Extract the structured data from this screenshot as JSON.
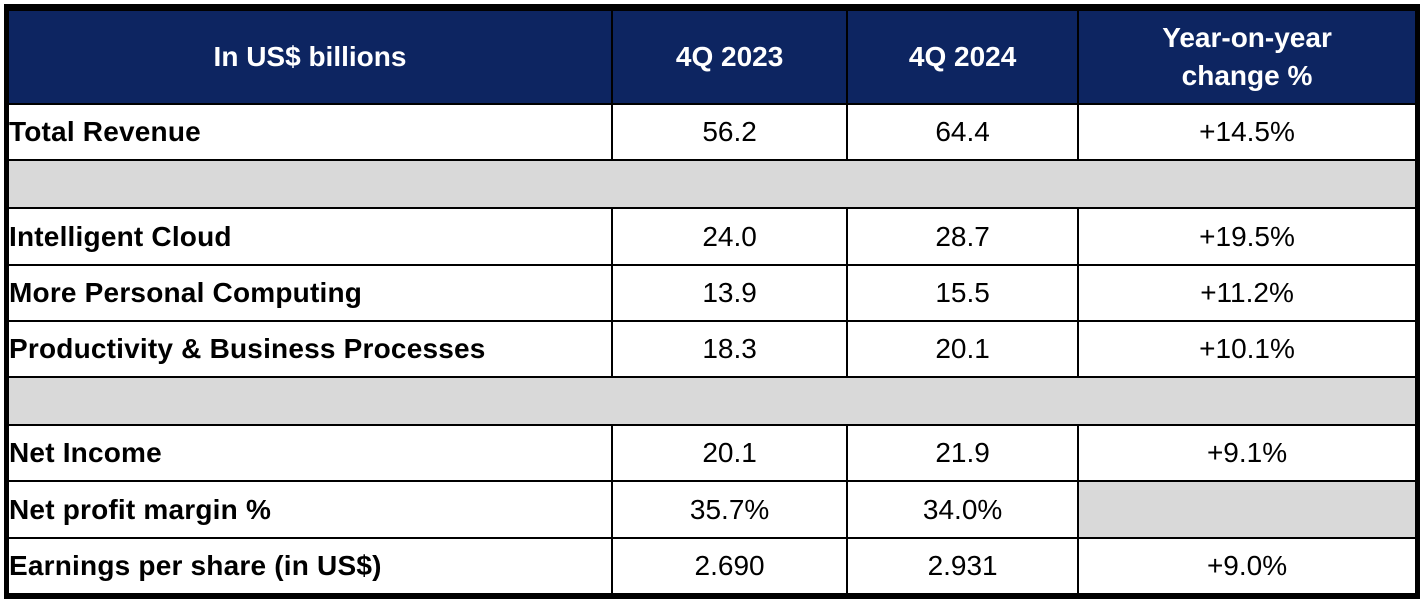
{
  "colors": {
    "header_bg": "#0D2561",
    "header_text": "#FFFFFF",
    "spacer_bg": "#D9D9D9",
    "border": "#000000",
    "row_bg": "#FFFFFF",
    "text": "#000000"
  },
  "table": {
    "columns": {
      "label": "In US$ billions",
      "q2023": "4Q 2023",
      "q2024": "4Q 2024",
      "yoy": "Year-on-year\nchange %"
    },
    "rows": [
      {
        "type": "data",
        "label": "Total Revenue",
        "q2023": "56.2",
        "q2024": "64.4",
        "yoy": "+14.5%"
      },
      {
        "type": "spacer"
      },
      {
        "type": "data",
        "label": "Intelligent Cloud",
        "q2023": "24.0",
        "q2024": "28.7",
        "yoy": "+19.5%"
      },
      {
        "type": "data",
        "label": "More Personal Computing",
        "q2023": "13.9",
        "q2024": "15.5",
        "yoy": "+11.2%"
      },
      {
        "type": "data",
        "label": "Productivity & Business Processes",
        "q2023": "18.3",
        "q2024": "20.1",
        "yoy": "+10.1%"
      },
      {
        "type": "spacer"
      },
      {
        "type": "data",
        "label": "Net Income",
        "q2023": "20.1",
        "q2024": "21.9",
        "yoy": "+9.1%"
      },
      {
        "type": "data",
        "label": "Net profit margin %",
        "q2023": "35.7%",
        "q2024": "34.0%",
        "yoy": ""
      },
      {
        "type": "data",
        "label": "Earnings per share (in US$)",
        "q2023": "2.690",
        "q2024": "2.931",
        "yoy": "+9.0%"
      }
    ]
  },
  "chart_data": {
    "type": "table",
    "title": "Quarterly results, in US$ billions (4Q 2023 vs 4Q 2024)",
    "columns": [
      "In US$ billions",
      "4Q 2023",
      "4Q 2024",
      "Year-on-year change %"
    ],
    "rows": [
      {
        "label": "Total Revenue",
        "q4_2023": 56.2,
        "q4_2024": 64.4,
        "yoy_change": "+14.5%"
      },
      {
        "label": "Intelligent Cloud",
        "q4_2023": 24.0,
        "q4_2024": 28.7,
        "yoy_change": "+19.5%"
      },
      {
        "label": "More Personal Computing",
        "q4_2023": 13.9,
        "q4_2024": 15.5,
        "yoy_change": "+11.2%"
      },
      {
        "label": "Productivity & Business Processes",
        "q4_2023": 18.3,
        "q4_2024": 20.1,
        "yoy_change": "+10.1%"
      },
      {
        "label": "Net Income",
        "q4_2023": 20.1,
        "q4_2024": 21.9,
        "yoy_change": "+9.1%"
      },
      {
        "label": "Net profit margin %",
        "q4_2023": "35.7%",
        "q4_2024": "34.0%",
        "yoy_change": null
      },
      {
        "label": "Earnings per share (in US$)",
        "q4_2023": 2.69,
        "q4_2024": 2.931,
        "yoy_change": "+9.0%"
      }
    ]
  }
}
